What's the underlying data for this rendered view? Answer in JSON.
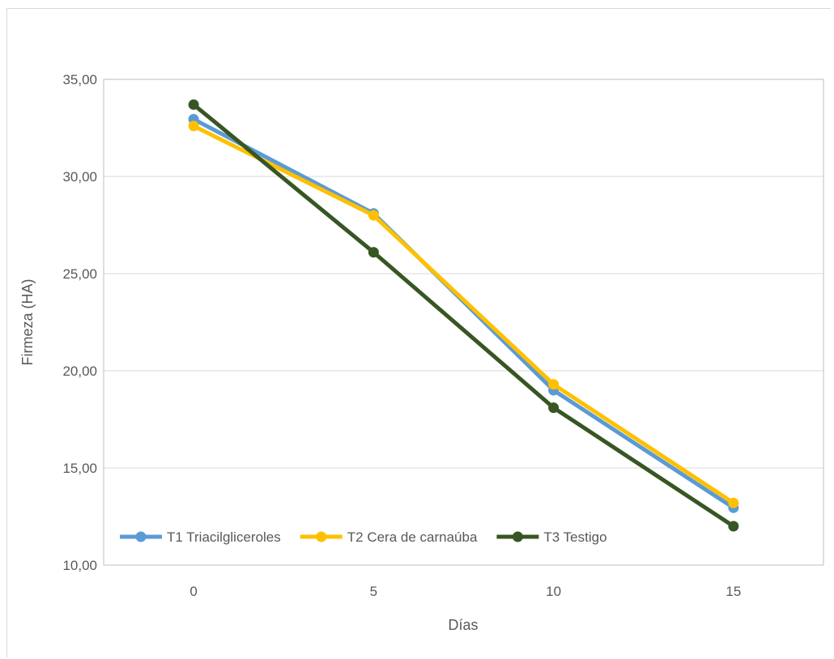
{
  "chart_data": {
    "type": "line",
    "title": "",
    "xlabel": "Días",
    "ylabel": "Firmeza (HA)",
    "categories": [
      "0",
      "5",
      "10",
      "15"
    ],
    "ylim": [
      10,
      35
    ],
    "yticks": [
      "10,00",
      "15,00",
      "20,00",
      "25,00",
      "30,00",
      "35,00"
    ],
    "grid": true,
    "legend_position": "bottom-inside",
    "series": [
      {
        "name": "T1 Triacilgliceroles",
        "color": "#5b9bd5",
        "values": [
          32.95,
          28.1,
          19.0,
          12.95
        ]
      },
      {
        "name": "T2 Cera de carnaúba",
        "color": "#ffc000",
        "values": [
          32.6,
          28.0,
          19.3,
          13.2
        ]
      },
      {
        "name": "T3 Testigo",
        "color": "#375623",
        "values": [
          33.7,
          26.1,
          18.1,
          12.0
        ]
      }
    ]
  }
}
